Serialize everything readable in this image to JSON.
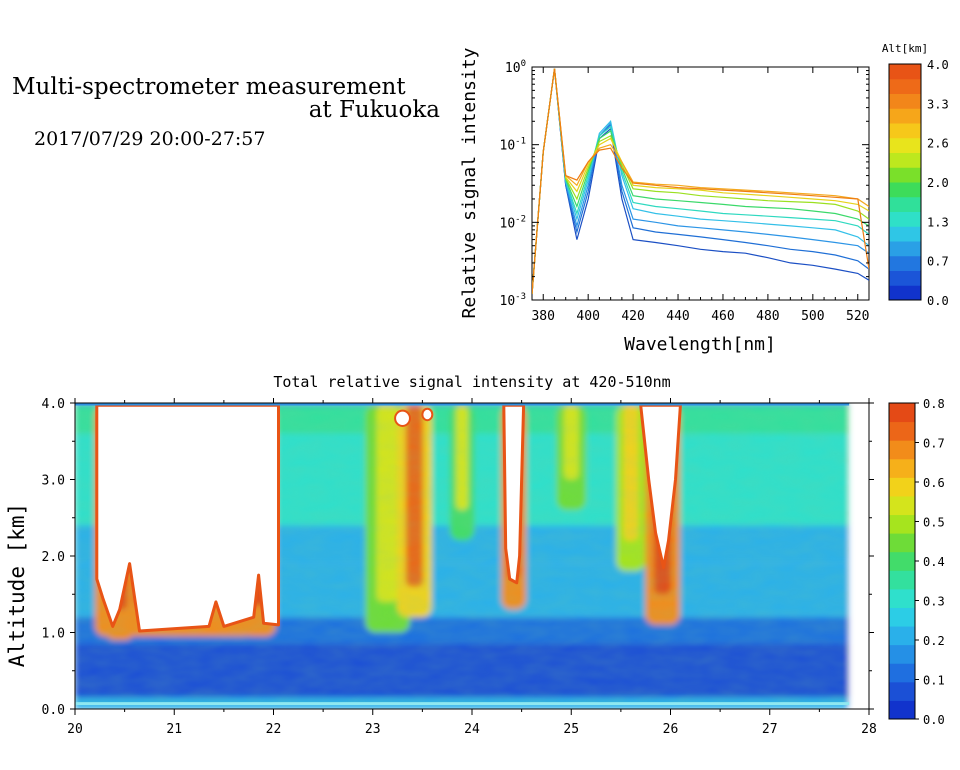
{
  "header": {
    "title_line1": "Multi-spectrometer measurement",
    "title_line2": "at Fukuoka",
    "date_range": "2017/07/29 20:00-27:57"
  },
  "chart_data": [
    {
      "type": "line",
      "title": "",
      "xlabel": "Wavelength[nm]",
      "ylabel": "Relative signal intensity",
      "xlim": [
        375,
        525
      ],
      "ylim": [
        0.001,
        1
      ],
      "yscale": "log",
      "x_ticks": [
        380,
        400,
        420,
        440,
        460,
        480,
        500,
        520
      ],
      "y_ticks": [
        {
          "value": 1,
          "label": "10^0"
        },
        {
          "value": 0.1,
          "label": "10^-1"
        },
        {
          "value": 0.01,
          "label": "10^-2"
        },
        {
          "value": 0.001,
          "label": "10^-3"
        }
      ],
      "x": [
        375,
        380,
        385,
        390,
        395,
        400,
        405,
        410,
        415,
        420,
        430,
        440,
        450,
        460,
        470,
        480,
        490,
        500,
        510,
        520,
        525
      ],
      "series": [
        {
          "color": "#1b4fc4",
          "values": [
            0.0012,
            0.08,
            0.95,
            0.03,
            0.006,
            0.02,
            0.12,
            0.16,
            0.02,
            0.006,
            0.0055,
            0.005,
            0.0045,
            0.0042,
            0.004,
            0.0035,
            0.003,
            0.0028,
            0.0025,
            0.0022,
            0.0018
          ]
        },
        {
          "color": "#1f6fd6",
          "values": [
            0.0012,
            0.08,
            0.95,
            0.03,
            0.0075,
            0.025,
            0.13,
            0.18,
            0.025,
            0.0085,
            0.0075,
            0.007,
            0.0065,
            0.006,
            0.0055,
            0.005,
            0.0045,
            0.0042,
            0.0038,
            0.0032,
            0.0025
          ]
        },
        {
          "color": "#2d95e6",
          "values": [
            0.0012,
            0.08,
            0.95,
            0.032,
            0.009,
            0.03,
            0.13,
            0.19,
            0.03,
            0.011,
            0.01,
            0.009,
            0.0085,
            0.008,
            0.0075,
            0.007,
            0.0065,
            0.006,
            0.0055,
            0.005,
            0.004
          ]
        },
        {
          "color": "#34c0e8",
          "values": [
            0.0012,
            0.08,
            0.95,
            0.034,
            0.011,
            0.035,
            0.14,
            0.2,
            0.04,
            0.015,
            0.013,
            0.012,
            0.011,
            0.0105,
            0.01,
            0.0095,
            0.009,
            0.0085,
            0.008,
            0.0065,
            0.005
          ]
        },
        {
          "color": "#2fd9c0",
          "values": [
            0.0012,
            0.08,
            0.95,
            0.035,
            0.013,
            0.04,
            0.13,
            0.17,
            0.045,
            0.018,
            0.016,
            0.015,
            0.014,
            0.013,
            0.0125,
            0.012,
            0.0115,
            0.011,
            0.0105,
            0.009,
            0.007
          ]
        },
        {
          "color": "#3bd96a",
          "values": [
            0.0012,
            0.08,
            0.95,
            0.036,
            0.016,
            0.045,
            0.12,
            0.15,
            0.05,
            0.022,
            0.02,
            0.019,
            0.018,
            0.017,
            0.016,
            0.0155,
            0.015,
            0.014,
            0.013,
            0.011,
            0.009
          ]
        },
        {
          "color": "#9be020",
          "values": [
            0.0012,
            0.08,
            0.95,
            0.037,
            0.02,
            0.05,
            0.11,
            0.13,
            0.055,
            0.027,
            0.025,
            0.024,
            0.022,
            0.021,
            0.02,
            0.019,
            0.0185,
            0.018,
            0.017,
            0.014,
            0.011
          ]
        },
        {
          "color": "#e6d21a",
          "values": [
            0.0012,
            0.08,
            0.95,
            0.038,
            0.025,
            0.055,
            0.1,
            0.12,
            0.06,
            0.03,
            0.028,
            0.027,
            0.026,
            0.024,
            0.023,
            0.022,
            0.021,
            0.02,
            0.019,
            0.017,
            0.014
          ]
        },
        {
          "color": "#f4a81d",
          "values": [
            0.0012,
            0.08,
            0.95,
            0.04,
            0.03,
            0.06,
            0.09,
            0.1,
            0.06,
            0.033,
            0.031,
            0.03,
            0.028,
            0.027,
            0.026,
            0.025,
            0.024,
            0.023,
            0.022,
            0.02,
            0.016
          ]
        },
        {
          "color": "#ee7d12",
          "values": [
            0.0012,
            0.08,
            0.95,
            0.04,
            0.035,
            0.06,
            0.085,
            0.09,
            0.05,
            0.032,
            0.03,
            0.028,
            0.027,
            0.026,
            0.025,
            0.024,
            0.023,
            0.022,
            0.021,
            0.02,
            0.0025
          ]
        }
      ],
      "colorbar": {
        "label": "Alt[km]",
        "ticks": [
          "0.0",
          "0.7",
          "1.3",
          "2.0",
          "2.6",
          "3.3",
          "4.0"
        ],
        "colors": [
          "#1133cc",
          "#1b55d8",
          "#2277e0",
          "#2aa0e6",
          "#2fc6e6",
          "#2fe0c8",
          "#30e09a",
          "#3ddc5a",
          "#7ae02a",
          "#bde81e",
          "#e8e41c",
          "#f6c81a",
          "#f6a61a",
          "#f2861a",
          "#ee6a18",
          "#e85416"
        ]
      }
    },
    {
      "type": "heatmap",
      "title": "Total relative signal intensity at 420-510nm",
      "xlabel": "",
      "ylabel": "Altitude [km]",
      "xlim": [
        20,
        28
      ],
      "ylim": [
        0,
        4
      ],
      "x_ticks": [
        20,
        21,
        22,
        23,
        24,
        25,
        26,
        27,
        28
      ],
      "y_ticks": [
        "0.0",
        "1.0",
        "2.0",
        "3.0",
        "4.0"
      ],
      "colorbar": {
        "range": [
          0,
          0.8
        ],
        "ticks": [
          "0.0",
          "0.1",
          "0.2",
          "0.3",
          "0.4",
          "0.5",
          "0.6",
          "0.7",
          "0.8"
        ],
        "colors": [
          "#1133cc",
          "#1b50d6",
          "#1f6fe0",
          "#2590e6",
          "#2ab0ea",
          "#2ccde6",
          "#2fe0cc",
          "#33e09e",
          "#42dc6a",
          "#6edc38",
          "#a6e41e",
          "#d4e41c",
          "#f2d21a",
          "#f6b01a",
          "#f28c1a",
          "#ec6618",
          "#e44a16"
        ]
      },
      "features": [
        {
          "kind": "saturated_block",
          "t_start": 20.2,
          "t_end": 22.05,
          "alt_base": 1.05,
          "note_shape": "large white area with orange/red border"
        },
        {
          "kind": "plume",
          "t_center": 23.4,
          "alt_base": 1.3
        },
        {
          "kind": "saturated_column",
          "t_center": 24.4,
          "alt_base": 1.6
        },
        {
          "kind": "saturated_column",
          "t_center": 25.9,
          "alt_base": 1.9
        }
      ]
    }
  ]
}
